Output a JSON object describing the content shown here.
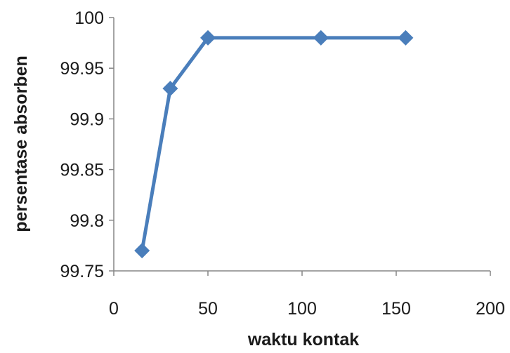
{
  "chart_data": {
    "type": "line",
    "title": "",
    "xlabel": "waktu kontak",
    "ylabel": "persentase absorben",
    "xlim": [
      0,
      200
    ],
    "ylim": [
      99.75,
      100
    ],
    "x_ticks": [
      "0",
      "50",
      "100",
      "150",
      "200"
    ],
    "y_ticks": [
      "99.75",
      "99.8",
      "99.85",
      "99.9",
      "99.95",
      "100"
    ],
    "grid": false,
    "legend": "none",
    "series": [
      {
        "x": [
          15,
          30,
          50,
          110,
          155
        ],
        "y": [
          99.77,
          99.93,
          99.98,
          99.98,
          99.98
        ],
        "marker": "diamond",
        "color": "#4a7ebb"
      }
    ]
  },
  "colors": {
    "series_line": "#4a7ebb",
    "axis": "#868686"
  }
}
